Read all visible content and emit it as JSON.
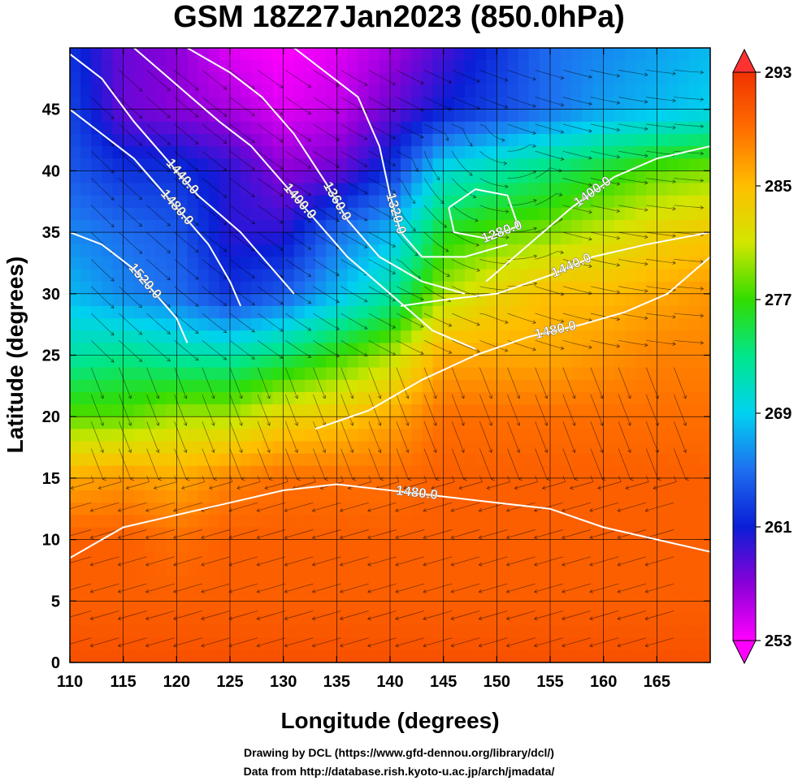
{
  "title": "GSM 18Z27Jan2023 (850.0hPa)",
  "credits": {
    "line1": "Drawing by DCL (https://www.gfd-dennou.org/library/dcl/)",
    "line2": "Data from http://database.rish.kyoto-u.ac.jp/arch/jmadata/"
  },
  "chart_data": {
    "type": "heatmap",
    "title": "GSM 18Z27Jan2023 (850.0hPa)",
    "xlabel": "Longitude (degrees)",
    "ylabel": "Latitude  (degrees)",
    "xlim": [
      110,
      170
    ],
    "ylim": [
      0,
      50
    ],
    "xticks": [
      110,
      115,
      120,
      125,
      130,
      135,
      140,
      145,
      150,
      155,
      160,
      165
    ],
    "yticks": [
      0,
      5,
      10,
      15,
      20,
      25,
      30,
      35,
      40,
      45
    ],
    "grid": true,
    "colorbar": {
      "range": [
        253,
        293
      ],
      "ticks": [
        253,
        261,
        269,
        277,
        285,
        293
      ],
      "placement": "right",
      "colors": [
        "#ff00ff",
        "#8a00d8",
        "#0a1ed6",
        "#1e6ef0",
        "#00d2f0",
        "#00e68c",
        "#32dc00",
        "#d2e600",
        "#ffbe00",
        "#ff6e00",
        "#f03200"
      ]
    },
    "temperature_field": {
      "lon": [
        110,
        115,
        120,
        125,
        130,
        135,
        140,
        145,
        150,
        155,
        160,
        165,
        170
      ],
      "lat": [
        50,
        45,
        40,
        35,
        30,
        25,
        20,
        15,
        10,
        5,
        0
      ],
      "values": [
        [
          262,
          258,
          257,
          254,
          253,
          254,
          256,
          259,
          262,
          265,
          266,
          267,
          268
        ],
        [
          263,
          258,
          257,
          256,
          254,
          255,
          258,
          261,
          263,
          265,
          267,
          268,
          269
        ],
        [
          264,
          262,
          262,
          260,
          257,
          258,
          262,
          270,
          272,
          274,
          276,
          278,
          279
        ],
        [
          266,
          265,
          264,
          260,
          260,
          265,
          268,
          276,
          278,
          279,
          281,
          283,
          284
        ],
        [
          268,
          266,
          265,
          262,
          264,
          268,
          272,
          280,
          283,
          285,
          285,
          286,
          287
        ],
        [
          272,
          273,
          272,
          272,
          274,
          277,
          280,
          286,
          286,
          286,
          287,
          288,
          288
        ],
        [
          278,
          278,
          280,
          280,
          283,
          284,
          286,
          289,
          289,
          289,
          289,
          289,
          289
        ],
        [
          286,
          287,
          286,
          288,
          289,
          289,
          289,
          290,
          290,
          290,
          290,
          290,
          290
        ],
        [
          290,
          290,
          289,
          290,
          290,
          290,
          290,
          290,
          290,
          290,
          290,
          290,
          290
        ],
        [
          290,
          290,
          290,
          290,
          290,
          290,
          290,
          290,
          290,
          290,
          290,
          290,
          290
        ],
        [
          291,
          291,
          291,
          291,
          291,
          291,
          291,
          291,
          291,
          291,
          291,
          291,
          291
        ]
      ]
    },
    "contours": [
      {
        "label": "1440.0",
        "points": [
          [
            110,
            49.5
          ],
          [
            113,
            47.5
          ],
          [
            116,
            44
          ],
          [
            119,
            41
          ],
          [
            122,
            38
          ],
          [
            126,
            35
          ],
          [
            129,
            32
          ],
          [
            131,
            30
          ]
        ]
      },
      {
        "label": "1480.0",
        "points": [
          [
            110,
            45
          ],
          [
            113,
            43
          ],
          [
            116,
            41
          ],
          [
            119,
            38
          ],
          [
            121,
            36
          ],
          [
            123,
            34
          ],
          [
            125,
            31
          ],
          [
            126,
            29
          ]
        ]
      },
      {
        "label": "1520.0",
        "points": [
          [
            110,
            35
          ],
          [
            113,
            34
          ],
          [
            116,
            32
          ],
          [
            118,
            30
          ],
          [
            120,
            28
          ],
          [
            121,
            26
          ]
        ]
      },
      {
        "label": "1400.0",
        "points": [
          [
            116,
            50
          ],
          [
            120,
            47
          ],
          [
            124,
            44
          ],
          [
            127,
            42
          ],
          [
            130,
            39
          ],
          [
            133,
            36
          ],
          [
            136,
            33
          ],
          [
            140,
            30
          ],
          [
            144,
            27
          ],
          [
            148,
            25.5
          ]
        ]
      },
      {
        "label": "1360.0",
        "points": [
          [
            121,
            50
          ],
          [
            125,
            48
          ],
          [
            128,
            46
          ],
          [
            131,
            43
          ],
          [
            134,
            39
          ],
          [
            136,
            36
          ],
          [
            139,
            33
          ],
          [
            143,
            31
          ],
          [
            147,
            30
          ]
        ]
      },
      {
        "label": "1320.0",
        "points": [
          [
            131,
            50
          ],
          [
            134,
            48
          ],
          [
            137,
            46
          ],
          [
            139,
            42
          ],
          [
            140,
            38
          ],
          [
            141,
            35
          ],
          [
            143,
            33
          ],
          [
            147,
            33
          ],
          [
            151,
            34
          ]
        ]
      },
      {
        "label": "1280.0",
        "points": [
          [
            145.5,
            37
          ],
          [
            148,
            38.5
          ],
          [
            151,
            38
          ],
          [
            152,
            35.5
          ],
          [
            149,
            34.5
          ],
          [
            146,
            35
          ],
          [
            145.5,
            37
          ]
        ]
      },
      {
        "label": "1400.0",
        "points": [
          [
            149,
            31
          ],
          [
            153,
            34
          ],
          [
            157,
            37
          ],
          [
            161,
            39.5
          ],
          [
            165,
            41
          ],
          [
            170,
            42
          ]
        ]
      },
      {
        "label": "1440.0",
        "points": [
          [
            141,
            29
          ],
          [
            145,
            29.5
          ],
          [
            150,
            30
          ],
          [
            155,
            31.5
          ],
          [
            159,
            33
          ],
          [
            164,
            34
          ],
          [
            170,
            35
          ]
        ]
      },
      {
        "label": "1480.0",
        "points": [
          [
            133,
            19
          ],
          [
            138,
            20.5
          ],
          [
            143,
            23
          ],
          [
            148,
            25
          ],
          [
            153,
            26.5
          ],
          [
            158,
            27.5
          ],
          [
            162,
            28.5
          ],
          [
            166,
            30
          ],
          [
            170,
            33
          ]
        ]
      },
      {
        "label": "1480.0",
        "points": [
          [
            110,
            8.5
          ],
          [
            115,
            11
          ],
          [
            120,
            12
          ],
          [
            125,
            13
          ],
          [
            130,
            14
          ],
          [
            135,
            14.5
          ],
          [
            140,
            14
          ],
          [
            145,
            13.5
          ],
          [
            150,
            13
          ],
          [
            155,
            12.5
          ],
          [
            160,
            11
          ],
          [
            165,
            10
          ],
          [
            170,
            9
          ]
        ]
      }
    ]
  }
}
